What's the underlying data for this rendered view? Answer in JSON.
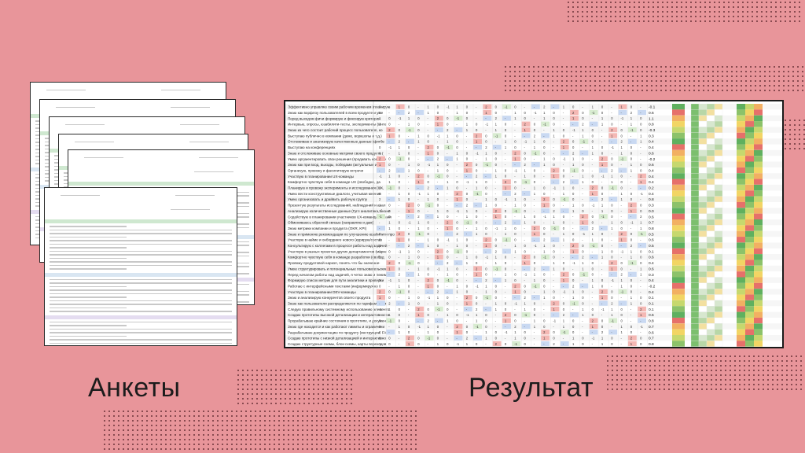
{
  "labels": {
    "left": "Анкеты",
    "right": "Результат"
  },
  "colors": {
    "background": "#e8959a",
    "dots": "#7a3f45",
    "heat_green": "#5fb05f",
    "heat_yellow": "#f2d564",
    "heat_red": "#e6706a",
    "sheet_header": "#cfe8d0"
  },
  "result": {
    "rows": [
      "Эффективно управляю своим рабочим временем (планирую",
      "Знаю как ворфлоу пользователей в всем продукте и уме",
      "Перед выходом фичи формирую и фиксирую критерии",
      "Интервью, опросы, юзабилити-тесты, эксперименты (Инте",
      "Знаю из чего состоит рабочий процесс пользователя, ко",
      "Выступаю публично в компании (демо, воркшопы и т.д.)",
      "Отслеживаю и анализирую качественные данные (фитбе",
      "Выступаю на конференциях",
      "Знаю и отслеживаю основные метрики своего продукта (",
      "Умею аргументировать свои решения (продавать команде",
      "Знаю как при вход, выходы, победами (актуальные и",
      "Организую, провожу и фасилитирую встречи",
      "Участвую в планировании UX-команды",
      "Комфортно чувствую себя в команде UX (свободно, да",
      "Планирую и провожу эксперименты и исследования (UX,",
      "Умею вести конструктивные диалоги, учитывая мнения",
      "Умею организовать и драйвить рабочую группу",
      "Презентую результаты исследований, наблюдений и анал",
      "Анализирую количественные данные (Гугл аналитика, бизне",
      "Содействую в планировании участников UX-команды (органи",
      "Обмениваюсь обратной связью (направляю и дам)",
      "Знаю метрики компании и продукта (OKR, KPI)",
      "Знаю и применяю рекомендации по улучшению юзабилити про",
      "Участвую в найме и онбординге нового (курирую/состав",
      "Консультирую с коллегами в процессе работы над задачей",
      "Участвую в разных проектах других департаментов (марке",
      "Комфортно чувствую себя в команде разработки (свобод",
      "Провожу продуктовой наркоп, понять что бы значение",
      "Умею структурировать и потенциальные пользовательские",
      "Перед началом работы над задачей, я четко знаю и поним",
      "Формирую список метрик для пути аналитики и проверки",
      "Работаю с интерфейсными текстами (информируя ко",
      "Участвую в планировании DEV-команды",
      "Знаю и анализирую конкурентов своего продукта",
      "Знаю как пользователи распределяются по тарифам, сегм",
      "Следую правильному системному использованию элементо",
      "Создаю прототипы высокой детализации и интерактивности",
      "Прорабатываю крайние состояния в прототипе, и документи",
      "Знаю где находится и как работают лимиты и ограничени",
      "Разрабатываю документацию по продукту (инструкции, FA",
      "Создаю прототипы с низкой детализацией и интерактивно",
      "Создаю структурные схемы, блок-схемы, карты переходов"
    ],
    "averages": [
      "-0.1",
      "0.6",
      "1.1",
      "0.8",
      "-0.3",
      "0.3",
      "0.4",
      "0.4",
      "0.6",
      "-0.2",
      "0.6",
      "0.4",
      "0.4",
      "0.4",
      "0.2",
      "0.4",
      "0.8",
      "0.3",
      "0.0",
      "0.6",
      "0.7",
      "0.8",
      "0.5",
      "0.6",
      "0.5",
      "0.1",
      "0.6",
      "0.4",
      "0.6",
      "0.3",
      "0.4",
      "-0.2",
      "0.4",
      "0.1",
      "0.1",
      "0.1",
      "0.6",
      "0.8",
      "0.7",
      "0.6",
      "0.7",
      "0.8"
    ]
  }
}
